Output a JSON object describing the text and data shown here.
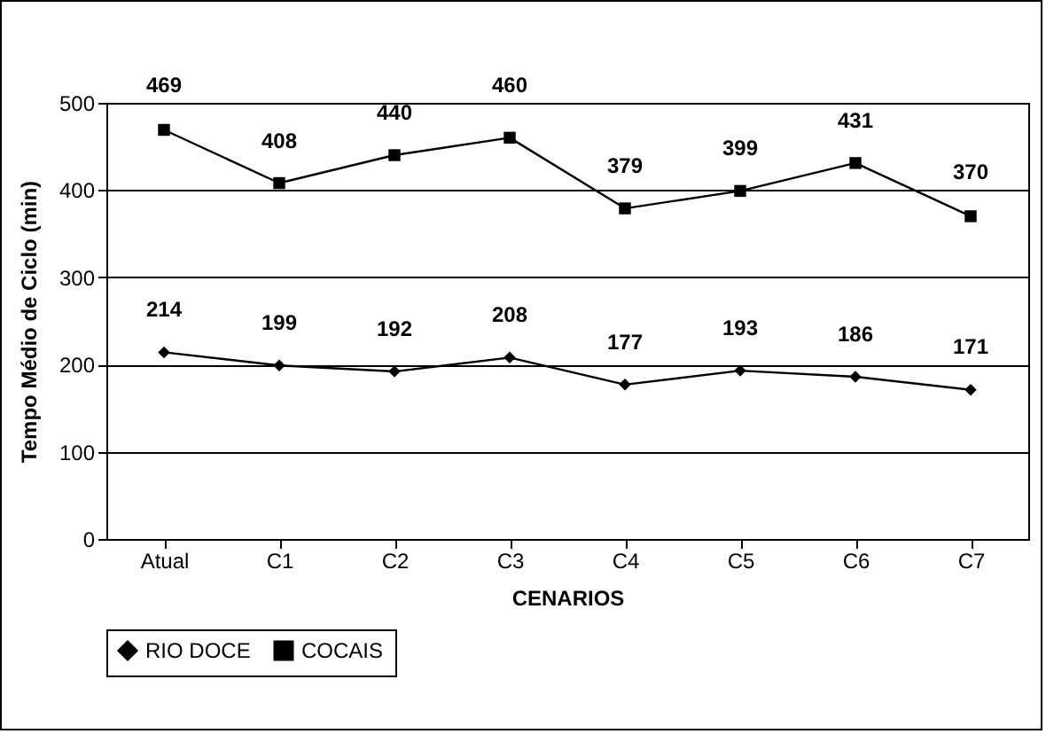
{
  "chart_data": {
    "type": "line",
    "xlabel": "CENARIOS",
    "ylabel": "Tempo Médio de Ciclo (min)",
    "categories": [
      "Atual",
      "C1",
      "C2",
      "C3",
      "C4",
      "C5",
      "C6",
      "C7"
    ],
    "series": [
      {
        "name": "RIO DOCE",
        "color": "#000000",
        "marker": "diamond",
        "values": [
          214,
          199,
          192,
          208,
          177,
          193,
          186,
          171
        ]
      },
      {
        "name": "COCAIS",
        "color": "#000000",
        "marker": "square",
        "values": [
          469,
          408,
          440,
          460,
          379,
          399,
          431,
          370
        ]
      }
    ],
    "ylim": [
      0,
      500
    ],
    "yticks": [
      0,
      100,
      200,
      300,
      400,
      500
    ],
    "grid": "y",
    "legend": "bottom",
    "data_labels": true,
    "line_style": "solid"
  }
}
